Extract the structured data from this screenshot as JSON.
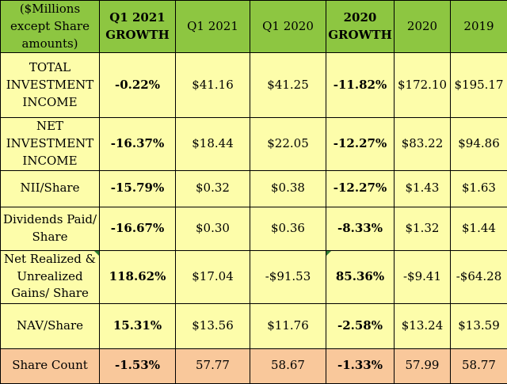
{
  "headers": [
    {
      "label": "($Millions except Share amounts)",
      "growth": false
    },
    {
      "label": "Q1 2021 GROWTH",
      "growth": true
    },
    {
      "label": "Q1 2021",
      "growth": false
    },
    {
      "label": "Q1 2020",
      "growth": false
    },
    {
      "label": "2020 GROWTH",
      "growth": true
    },
    {
      "label": "2020",
      "growth": false
    },
    {
      "label": "2019",
      "growth": false
    }
  ],
  "rows": [
    {
      "label": "TOTAL INVESTMENT INCOME",
      "cells": [
        "-0.22%",
        "$41.16",
        "$41.25",
        "-11.82%",
        "$172.10",
        "$195.17"
      ]
    },
    {
      "label": "NET INVESTMENT INCOME",
      "cells": [
        "-16.37%",
        "$18.44",
        "$22.05",
        "-12.27%",
        "$83.22",
        "$94.86"
      ]
    },
    {
      "label": "NII/Share",
      "cells": [
        "-15.79%",
        "$0.32",
        "$0.38",
        "-12.27%",
        "$1.43",
        "$1.63"
      ]
    },
    {
      "label": "Dividends Paid/ Share",
      "cells": [
        "-16.67%",
        "$0.30",
        "$0.36",
        "-8.33%",
        "$1.32",
        "$1.44"
      ]
    },
    {
      "label": "Net Realized & Unrealized Gains/ Share",
      "cells": [
        "118.62%",
        "$17.04",
        "-$91.53",
        "85.36%",
        "-$9.41",
        "-$64.28"
      ]
    },
    {
      "label": "NAV/Share",
      "cells": [
        "15.31%",
        "$13.56",
        "$11.76",
        "-2.58%",
        "$13.24",
        "$13.59"
      ]
    },
    {
      "label": "Share Count",
      "cells": [
        "-1.53%",
        "57.77",
        "58.67",
        "-1.33%",
        "57.99",
        "58.77"
      ]
    }
  ],
  "colors": {
    "header_bg": "#8dc641",
    "body_bg": "#fdfdaa",
    "share_count_bg": "#f9c89b",
    "border": "#000000"
  }
}
